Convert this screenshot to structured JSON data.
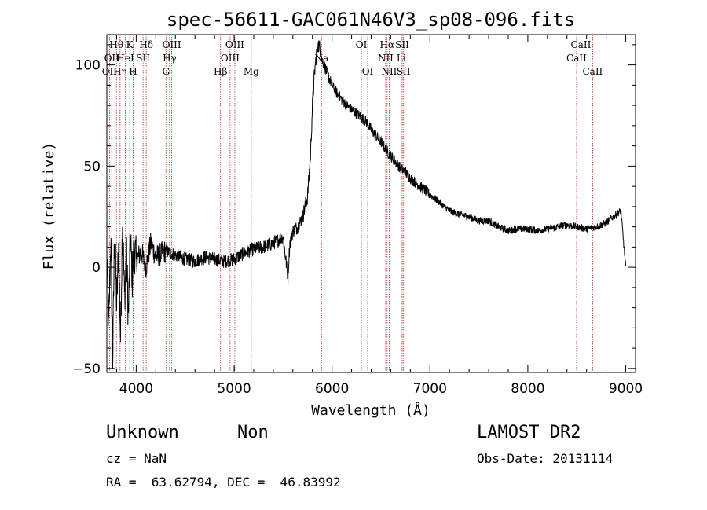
{
  "chart_data": {
    "type": "line",
    "title": "spec-56611-GAC061N46V3_sp08-096.fits",
    "xlabel": "Wavelength (Å)",
    "ylabel": "Flux (relative)",
    "xlim": [
      3700,
      9100
    ],
    "ylim": [
      -52,
      115
    ],
    "xticks": [
      4000,
      5000,
      6000,
      7000,
      8000,
      9000
    ],
    "yticks": [
      -50,
      0,
      50,
      100
    ],
    "grid": false,
    "series": [
      {
        "color": "#000000",
        "x": [
          3700,
          3720,
          3740,
          3760,
          3780,
          3800,
          3820,
          3840,
          3860,
          3880,
          3900,
          3920,
          3940,
          3960,
          3980,
          4000,
          4050,
          4100,
          4150,
          4200,
          4300,
          4400,
          4500,
          4600,
          4700,
          4800,
          4900,
          5000,
          5100,
          5200,
          5300,
          5400,
          5500,
          5550,
          5560,
          5570,
          5580,
          5600,
          5650,
          5700,
          5750,
          5780,
          5800,
          5820,
          5840,
          5860,
          5880,
          5900,
          5920,
          5950,
          6000,
          6050,
          6100,
          6150,
          6200,
          6250,
          6300,
          6350,
          6400,
          6450,
          6500,
          6550,
          6600,
          6650,
          6700,
          6750,
          6800,
          6850,
          6900,
          7000,
          7100,
          7200,
          7300,
          7400,
          7500,
          7600,
          7700,
          7800,
          7900,
          8000,
          8100,
          8200,
          8300,
          8400,
          8500,
          8600,
          8700,
          8800,
          8900,
          8950,
          9000
        ],
        "y": [
          5,
          -30,
          15,
          -45,
          20,
          -20,
          10,
          -35,
          25,
          -15,
          8,
          -25,
          15,
          -5,
          10,
          3,
          8,
          0,
          12,
          5,
          8,
          6,
          4,
          3,
          5,
          4,
          3,
          4,
          7,
          9,
          10,
          12,
          15,
          -5,
          5,
          12,
          14,
          18,
          20,
          25,
          35,
          55,
          80,
          95,
          105,
          110,
          108,
          102,
          100,
          96,
          90,
          86,
          83,
          80,
          78,
          76,
          74,
          72,
          68,
          65,
          62,
          58,
          55,
          52,
          49,
          47,
          44,
          42,
          40,
          36,
          32,
          28,
          26,
          25,
          23,
          23,
          20,
          18,
          19,
          19,
          18,
          19,
          20,
          21,
          20,
          19,
          20,
          22,
          26,
          28,
          0
        ]
      }
    ],
    "spectral_lines": [
      {
        "wavelength": 3727,
        "label": "OII",
        "row": 2
      },
      {
        "wavelength": 3750,
        "label": "OII",
        "row": 1
      },
      {
        "wavelength": 3798,
        "label": "Hθ",
        "row": 0
      },
      {
        "wavelength": 3835,
        "label": "Hη",
        "row": 2
      },
      {
        "wavelength": 3889,
        "label": "HeI",
        "row": 1
      },
      {
        "wavelength": 3934,
        "label": "K",
        "row": 0
      },
      {
        "wavelength": 3969,
        "label": "H",
        "row": 2
      },
      {
        "wavelength": 4070,
        "label": "SII",
        "row": 1
      },
      {
        "wavelength": 4102,
        "label": "Hδ",
        "row": 0
      },
      {
        "wavelength": 4304,
        "label": "G",
        "row": 2
      },
      {
        "wavelength": 4341,
        "label": "Hγ",
        "row": 1
      },
      {
        "wavelength": 4363,
        "label": "OIII",
        "row": 0
      },
      {
        "wavelength": 4861,
        "label": "Hβ",
        "row": 2
      },
      {
        "wavelength": 4959,
        "label": "OIII",
        "row": 1
      },
      {
        "wavelength": 5007,
        "label": "OIII",
        "row": 0
      },
      {
        "wavelength": 5175,
        "label": "Mg",
        "row": 2
      },
      {
        "wavelength": 5893,
        "label": "Na",
        "row": 1
      },
      {
        "wavelength": 6300,
        "label": "OI",
        "row": 0
      },
      {
        "wavelength": 6364,
        "label": "OI",
        "row": 2
      },
      {
        "wavelength": 6548,
        "label": "NII",
        "row": 1
      },
      {
        "wavelength": 6563,
        "label": "Hα",
        "row": 0
      },
      {
        "wavelength": 6584,
        "label": "NII",
        "row": 2
      },
      {
        "wavelength": 6707,
        "label": "Li",
        "row": 1
      },
      {
        "wavelength": 6717,
        "label": "SII",
        "row": 0
      },
      {
        "wavelength": 6731,
        "label": "SII",
        "row": 2
      },
      {
        "wavelength": 8498,
        "label": "CaII",
        "row": 1
      },
      {
        "wavelength": 8542,
        "label": "CaII",
        "row": 0
      },
      {
        "wavelength": 8662,
        "label": "CaII",
        "row": 2
      }
    ]
  },
  "info": {
    "class": "Unknown",
    "subclass": "Non",
    "survey": "LAMOST DR2",
    "cz": "cz = NaN",
    "obs_date": "Obs-Date: 20131114",
    "radec": "RA =  63.62794, DEC =  46.83992"
  },
  "colors": {
    "spectrum": "#000000",
    "line_marker": "#b03030",
    "axes": "#000000"
  }
}
